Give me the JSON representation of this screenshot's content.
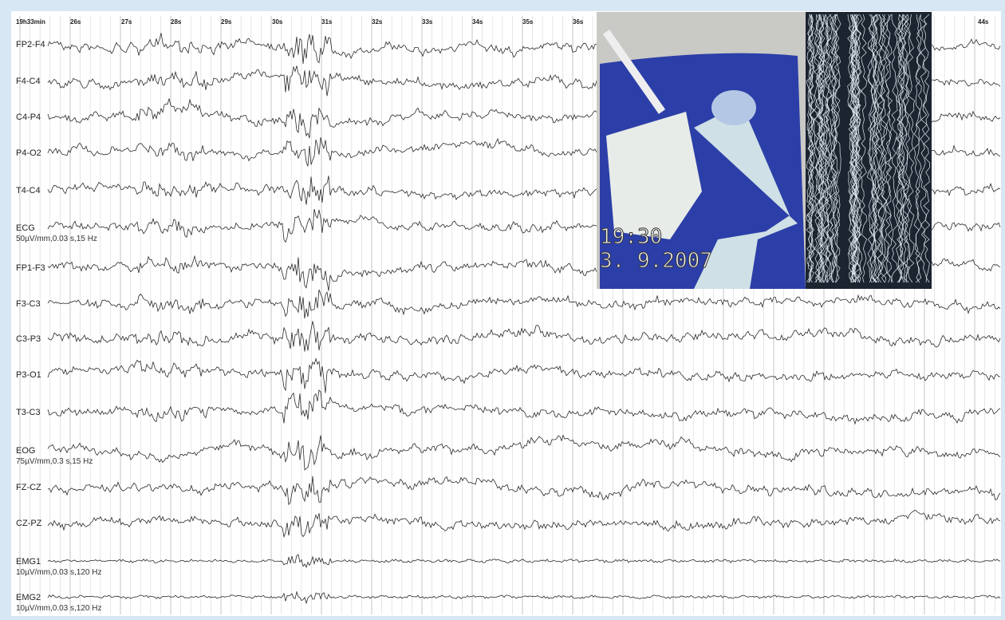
{
  "time_axis": {
    "start": "19h33min",
    "seconds": [
      "26s",
      "27s",
      "28s",
      "29s",
      "30s",
      "31s",
      "32s",
      "33s",
      "34s",
      "35s",
      "36s",
      "44s"
    ]
  },
  "channels": [
    {
      "label": "FP2-F4"
    },
    {
      "label": "F4-C4"
    },
    {
      "label": "C4-P4"
    },
    {
      "label": "P4-O2"
    },
    {
      "label": "T4-C4"
    },
    {
      "label": "ECG",
      "settings": "50µV/mm,0.03 s,15 Hz"
    },
    {
      "label": "FP1-F3"
    },
    {
      "label": "F3-C3"
    },
    {
      "label": "C3-P3"
    },
    {
      "label": "P3-O1"
    },
    {
      "label": "T3-C3"
    },
    {
      "label": "EOG",
      "settings": "75µV/mm,0.3 s,15 Hz"
    },
    {
      "label": "FZ-CZ"
    },
    {
      "label": "CZ-PZ"
    },
    {
      "label": "EMG1",
      "settings": "10µV/mm,0.03 s,120 Hz"
    },
    {
      "label": "EMG2",
      "settings": "10µV/mm,0.03 s,120 Hz"
    }
  ],
  "video": {
    "time": "19:30",
    "date": "3. 9.2007"
  }
}
